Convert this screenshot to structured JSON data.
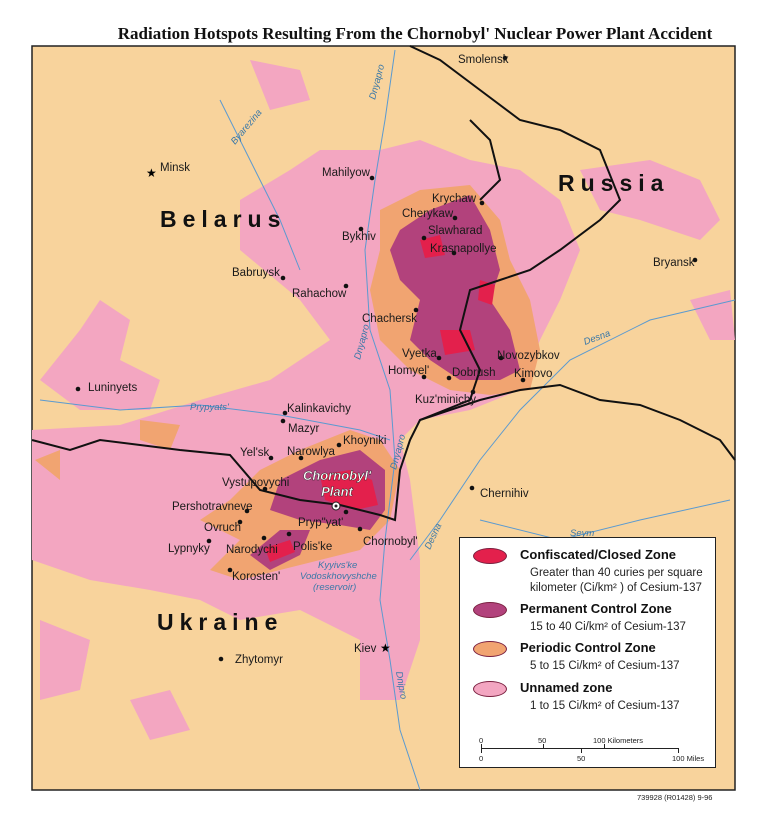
{
  "title": "Radiation Hotspots Resulting From the Chornobyl' Nuclear Power Plant Accident",
  "colors": {
    "background_land": "#f8d39c",
    "unnamed_zone": "#f3a6c1",
    "periodic_control_zone": "#f1a471",
    "permanent_control_zone": "#b2427c",
    "confiscated_closed_zone": "#e3204c",
    "river": "#5b9ad0",
    "border": "#111111"
  },
  "countries": [
    "Belarus",
    "Russia",
    "Ukraine"
  ],
  "capitals": [
    "Minsk",
    "Kiev"
  ],
  "cities": [
    "Smolensk",
    "Mahilyow",
    "Krychaw",
    "Cherykaw",
    "Slawharad",
    "Krasnapollye",
    "Bykhiv",
    "Babruysk",
    "Rahachow",
    "Chachersk",
    "Vyetka",
    "Homyel'",
    "Dobrush",
    "Novozybkov",
    "Kimovo",
    "Kuz'minichy",
    "Bryansk",
    "Luninyets",
    "Kalinkavichy",
    "Mazyr",
    "Khoyniki",
    "Narowlya",
    "Yel'sk",
    "Vystupovychi",
    "Pershotravneve",
    "Ovruch",
    "Lypnyky",
    "Narodychi",
    "Polis'ke",
    "Pryp\"yat'",
    "Chornobyl'",
    "Korosten'",
    "Zhytomyr",
    "Chernihiv"
  ],
  "plant": {
    "line1": "Chornobyl'",
    "line2": "Plant",
    "icon": "nuclear-plant-icon"
  },
  "rivers": [
    "Dnyapro",
    "Byarezina",
    "Dnyapro",
    "Prypyats'",
    "Dnyapro",
    "Desna",
    "Desna",
    "Seym",
    "Dnipro",
    "Kyyivs'ke",
    "Vodoskhovyshche",
    "(reservoir)"
  ],
  "legend": {
    "items": [
      {
        "title": "Confiscated/Closed Zone",
        "desc1": "Greater than 40 curies per square",
        "desc2": "kilometer (Ci/km² ) of Cesium-137"
      },
      {
        "title": "Permanent Control Zone",
        "desc1": "15 to 40 Ci/km² of Cesium-137"
      },
      {
        "title": "Periodic Control Zone",
        "desc1": "5 to 15 Ci/km² of Cesium-137"
      },
      {
        "title": "Unnamed zone",
        "desc1": "1 to 15 Ci/km² of Cesium-137"
      }
    ],
    "scale": {
      "km_0": "0",
      "km_50": "50",
      "km_100": "100 Kilometers",
      "mi_0": "0",
      "mi_50": "50",
      "mi_100": "100 Miles"
    }
  },
  "credit": "739928 (R01428) 9-96"
}
